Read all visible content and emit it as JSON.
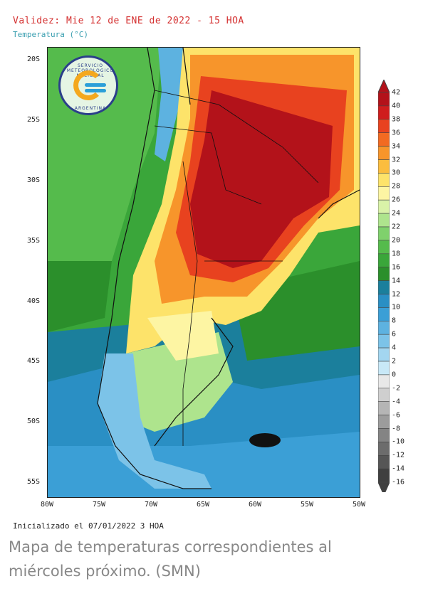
{
  "header": {
    "validity": "Validez: Mie 12 de ENE de 2022 - 15 HOA",
    "variable": "Temperatura (°C)"
  },
  "logo": {
    "top_text": "SERVICIO METEOROLOGICO NACIONAL",
    "bottom_text": "ARGENTINA"
  },
  "axes": {
    "lat_labels": [
      "20S",
      "25S",
      "30S",
      "35S",
      "40S",
      "45S",
      "50S",
      "55S"
    ],
    "lon_labels": [
      "80W",
      "75W",
      "70W",
      "65W",
      "60W",
      "55W",
      "50W"
    ],
    "lat_range": [
      -56,
      -19
    ],
    "lon_range": [
      -80,
      -50
    ]
  },
  "colorbar": {
    "labels": [
      "42",
      "40",
      "38",
      "36",
      "34",
      "32",
      "30",
      "28",
      "26",
      "24",
      "22",
      "20",
      "18",
      "16",
      "14",
      "12",
      "10",
      "8",
      "6",
      "4",
      "2",
      "0",
      "-2",
      "-4",
      "-6",
      "-8",
      "-10",
      "-12",
      "-14",
      "-16"
    ],
    "colors": [
      "#b3121a",
      "#cf1d1d",
      "#e8421f",
      "#f26a22",
      "#f7952b",
      "#fbbd3e",
      "#fde36a",
      "#fdf5a3",
      "#d9f2a8",
      "#aee48d",
      "#7fd16c",
      "#55bb4c",
      "#3aa63a",
      "#2b8f2b",
      "#1b7f9c",
      "#2a8fc4",
      "#3b9fd6",
      "#5db2e0",
      "#7cc3e8",
      "#a3d6f0",
      "#c8e8f7",
      "#e8e8e8",
      "#cfcfcf",
      "#b5b5b5",
      "#9c9c9c",
      "#848484",
      "#6c6c6c",
      "#565656",
      "#404040"
    ]
  },
  "footer": {
    "initialized": "Inicializado el 07/01/2022 3 HOA",
    "caption": "Mapa de temperaturas correspondientes al miércoles próximo. (SMN)"
  }
}
